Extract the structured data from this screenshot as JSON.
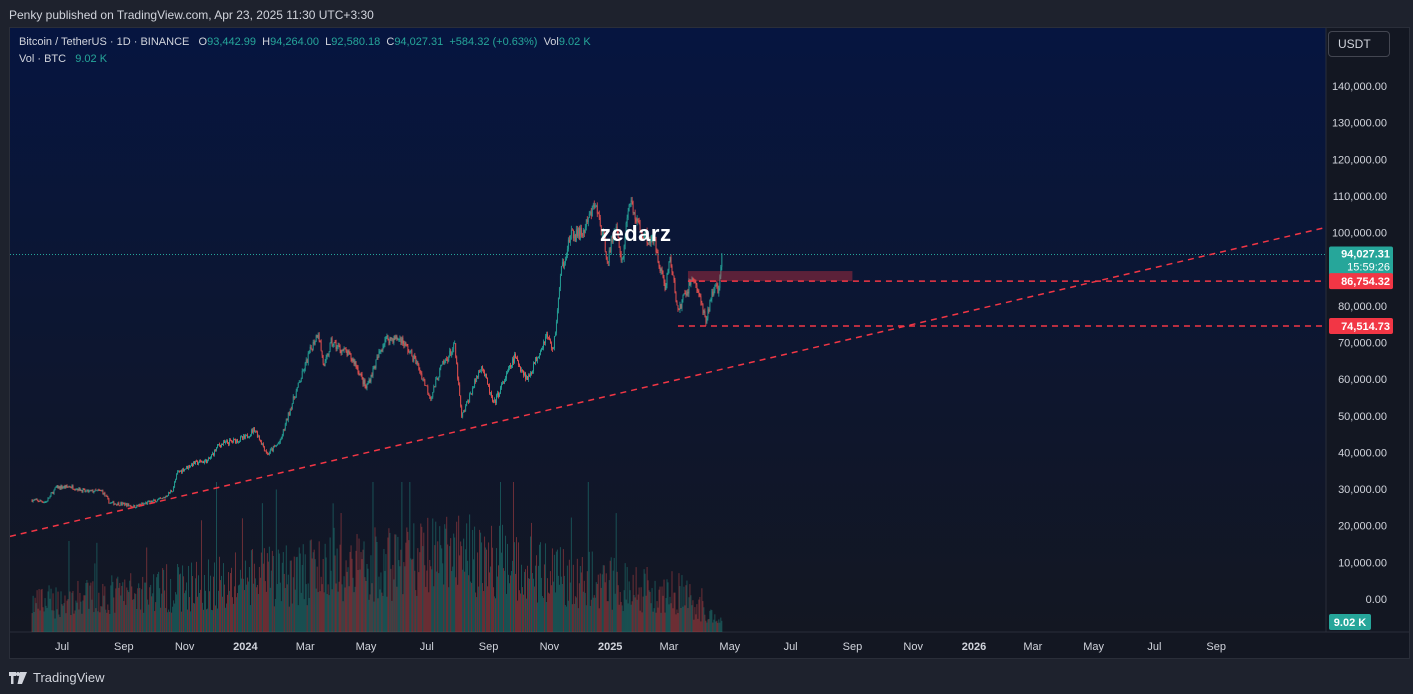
{
  "header": {
    "published": "Penky published on TradingView.com, Apr 23, 2025 11:30 UTC+3:30"
  },
  "legend": {
    "symbol": "Bitcoin / TetherUS · 1D · BINANCE",
    "o_label": "O",
    "o_value": "93,442.99",
    "h_label": "H",
    "h_value": "94,264.00",
    "l_label": "L",
    "l_value": "92,580.18",
    "c_label": "C",
    "c_value": "94,027.31",
    "change": "+584.32 (+0.63%)",
    "vol_label": "Vol",
    "vol_value": "9.02 K",
    "vol_line_label": "Vol · BTC",
    "vol_line_value": "9.02 K"
  },
  "currency_button": "USDT",
  "watermark": "zedarz",
  "footer": {
    "brand": "TradingView"
  },
  "colors": {
    "up": "#26a69a",
    "down": "#ef5350",
    "level": "#f23645",
    "background_top": "#061540",
    "background_bottom": "#131722"
  },
  "chart_data": {
    "type": "candlestick",
    "title": "Bitcoin / TetherUS · 1D · BINANCE",
    "y_axis_labels": [
      "140,000.00",
      "130,000.00",
      "120,000.00",
      "110,000.00",
      "100,000.00",
      "90,000.00",
      "80,000.00",
      "70,000.00",
      "60,000.00",
      "50,000.00",
      "40,000.00",
      "30,000.00",
      "20,000.00",
      "10,000.00",
      "0.00"
    ],
    "y_axis_values": [
      140000,
      130000,
      120000,
      110000,
      100000,
      90000,
      80000,
      70000,
      60000,
      50000,
      40000,
      30000,
      20000,
      10000,
      0
    ],
    "x_axis_labels": [
      "Jul",
      "Sep",
      "Nov",
      "2024",
      "Mar",
      "May",
      "Jul",
      "Sep",
      "Nov",
      "2025",
      "Mar",
      "May",
      "Jul",
      "Sep",
      "Nov",
      "2026",
      "Mar",
      "May",
      "Jul",
      "Sep"
    ],
    "x_axis_dates": [
      "2023-07-01",
      "2023-09-01",
      "2023-11-01",
      "2024-01-01",
      "2024-03-01",
      "2024-05-01",
      "2024-07-01",
      "2024-09-01",
      "2024-11-01",
      "2025-01-01",
      "2025-03-01",
      "2025-05-01",
      "2025-07-01",
      "2025-09-01",
      "2025-11-01",
      "2026-01-01",
      "2026-03-01",
      "2026-05-01",
      "2026-07-01",
      "2026-09-01"
    ],
    "price_path": [
      [
        "2023-06-01",
        27000
      ],
      [
        "2023-06-15",
        26500
      ],
      [
        "2023-06-25",
        30400
      ],
      [
        "2023-07-10",
        30700
      ],
      [
        "2023-07-25",
        29300
      ],
      [
        "2023-08-10",
        29500
      ],
      [
        "2023-08-18",
        26200
      ],
      [
        "2023-09-01",
        25900
      ],
      [
        "2023-09-12",
        25200
      ],
      [
        "2023-09-25",
        26300
      ],
      [
        "2023-10-10",
        27300
      ],
      [
        "2023-10-20",
        29800
      ],
      [
        "2023-10-25",
        34500
      ],
      [
        "2023-11-10",
        37000
      ],
      [
        "2023-11-25",
        37800
      ],
      [
        "2023-12-05",
        42000
      ],
      [
        "2023-12-15",
        42800
      ],
      [
        "2024-01-01",
        44000
      ],
      [
        "2024-01-10",
        46500
      ],
      [
        "2024-01-23",
        39500
      ],
      [
        "2024-02-05",
        43000
      ],
      [
        "2024-02-15",
        52000
      ],
      [
        "2024-02-28",
        62000
      ],
      [
        "2024-03-05",
        67000
      ],
      [
        "2024-03-14",
        73000
      ],
      [
        "2024-03-20",
        63000
      ],
      [
        "2024-03-27",
        70000
      ],
      [
        "2024-04-12",
        67000
      ],
      [
        "2024-04-20",
        64500
      ],
      [
        "2024-05-01",
        57500
      ],
      [
        "2024-05-20",
        71000
      ],
      [
        "2024-06-05",
        71000
      ],
      [
        "2024-06-20",
        64800
      ],
      [
        "2024-07-05",
        55000
      ],
      [
        "2024-07-15",
        63000
      ],
      [
        "2024-07-29",
        69000
      ],
      [
        "2024-08-05",
        49500
      ],
      [
        "2024-08-25",
        64000
      ],
      [
        "2024-09-06",
        53000
      ],
      [
        "2024-09-27",
        66000
      ],
      [
        "2024-10-10",
        60000
      ],
      [
        "2024-10-29",
        72000
      ],
      [
        "2024-11-05",
        68000
      ],
      [
        "2024-11-13",
        90000
      ],
      [
        "2024-11-22",
        99000
      ],
      [
        "2024-12-05",
        100000
      ],
      [
        "2024-12-17",
        108000
      ],
      [
        "2024-12-30",
        92500
      ],
      [
        "2025-01-06",
        102000
      ],
      [
        "2025-01-13",
        92000
      ],
      [
        "2025-01-20",
        109000
      ],
      [
        "2025-02-01",
        100000
      ],
      [
        "2025-02-15",
        97000
      ],
      [
        "2025-02-25",
        85000
      ],
      [
        "2025-03-02",
        93000
      ],
      [
        "2025-03-10",
        78500
      ],
      [
        "2025-03-25",
        88000
      ],
      [
        "2025-04-01",
        82000
      ],
      [
        "2025-04-07",
        75000
      ],
      [
        "2025-04-13",
        84000
      ],
      [
        "2025-04-20",
        85000
      ],
      [
        "2025-04-23",
        94027.31
      ]
    ],
    "volume_path": [
      [
        "2023-06-01",
        35
      ],
      [
        "2024-03-05",
        75
      ],
      [
        "2024-08-05",
        98
      ],
      [
        "2024-11-12",
        70
      ],
      [
        "2025-03-10",
        50
      ],
      [
        "2025-04-23",
        9
      ]
    ],
    "last_price": 94027.31,
    "last_price_label": "94,027.31",
    "countdown": "15:59:26",
    "levels": [
      {
        "value": 86754.32,
        "label": "86,754.32",
        "from_date": "2025-03-20"
      },
      {
        "value": 74514.73,
        "label": "74,514.73",
        "from_date": "2025-03-10"
      }
    ],
    "zone": {
      "from_date": "2025-03-20",
      "to_date": "2025-09-01",
      "low": 86754.32,
      "high": 89500
    },
    "trendline": {
      "points": [
        [
          "2023-06-01",
          18500
        ],
        [
          "2025-04-23",
          58500
        ],
        [
          "2026-11-28",
          100000
        ]
      ]
    },
    "volume_label": "9.02 K"
  }
}
